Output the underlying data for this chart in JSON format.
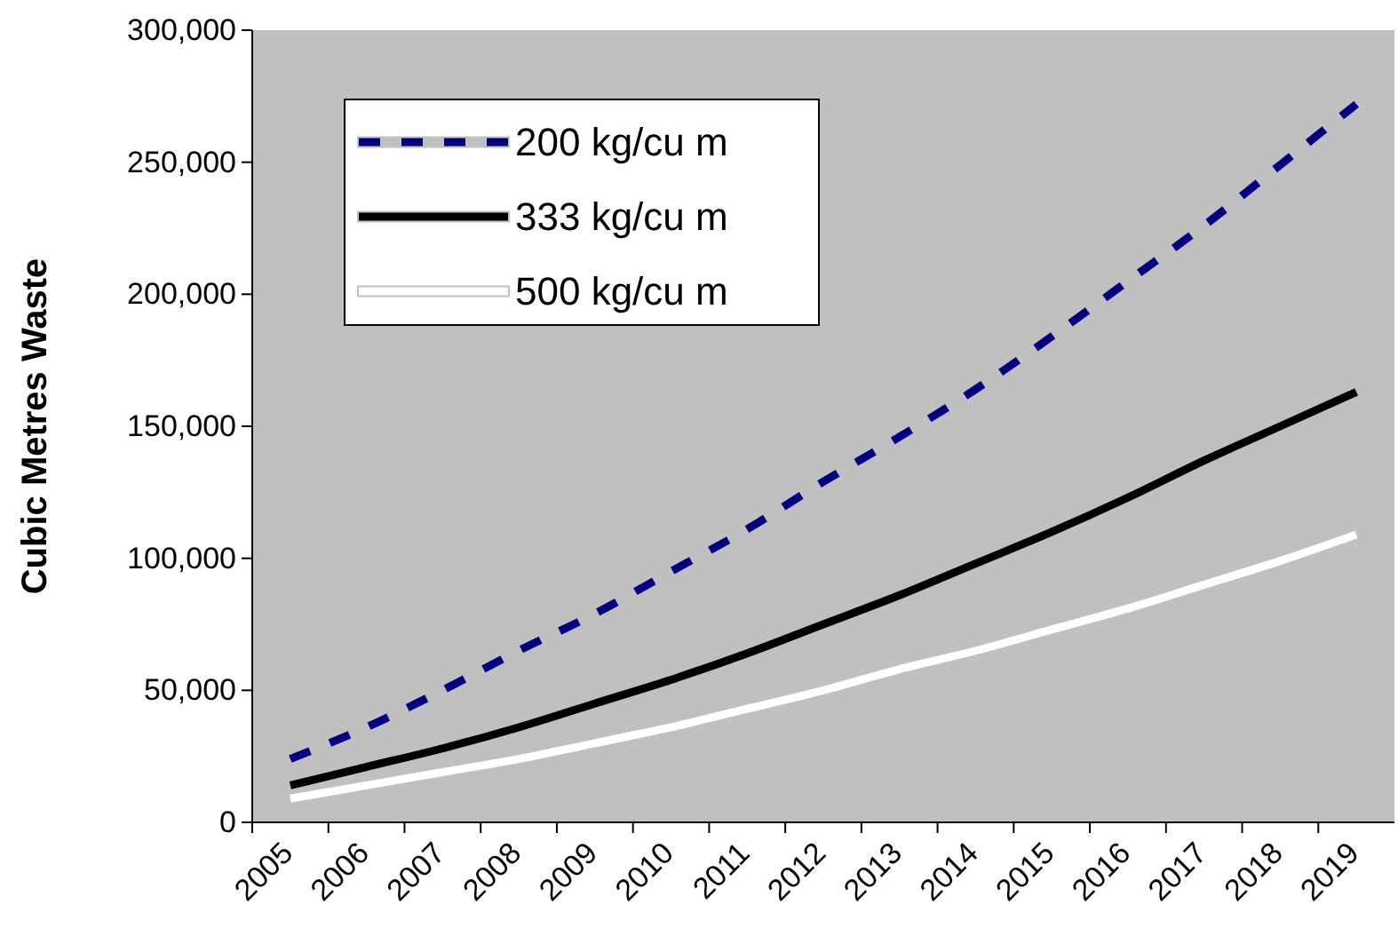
{
  "chart_data": {
    "type": "line",
    "ylabel": "Cubic Metres Waste",
    "categories": [
      "2005",
      "2006",
      "2007",
      "2008",
      "2009",
      "2010",
      "2011",
      "2012",
      "2013",
      "2014",
      "2015",
      "2016",
      "2017",
      "2018",
      "2019"
    ],
    "series": [
      {
        "name": "200 kg/cu m",
        "color": "#000080",
        "line_style": "dashed",
        "values": [
          24000,
          36000,
          50000,
          65000,
          79000,
          95000,
          111000,
          129000,
          146000,
          164000,
          184000,
          205000,
          226000,
          249000,
          272000
        ]
      },
      {
        "name": "333 kg/cu m",
        "color": "#000000",
        "line_style": "solid",
        "values": [
          14000,
          21000,
          28000,
          36000,
          45000,
          54000,
          64000,
          75000,
          86000,
          98000,
          110000,
          123000,
          137000,
          150000,
          163000
        ]
      },
      {
        "name": "500 kg/cu m",
        "color": "#ffffff",
        "line_style": "solid",
        "values": [
          9000,
          14000,
          19000,
          24000,
          30000,
          36000,
          43000,
          50000,
          58000,
          65000,
          73000,
          81000,
          90000,
          99000,
          109000
        ]
      }
    ],
    "ylim": [
      0,
      300000
    ],
    "yticks": [
      {
        "value": 0,
        "label": "0"
      },
      {
        "value": 50000,
        "label": "50,000"
      },
      {
        "value": 100000,
        "label": "100,000"
      },
      {
        "value": 150000,
        "label": "150,000"
      },
      {
        "value": 200000,
        "label": "200,000"
      },
      {
        "value": 250000,
        "label": "250,000"
      },
      {
        "value": 300000,
        "label": "300,000"
      }
    ],
    "legend": "top left",
    "marker": "none"
  }
}
